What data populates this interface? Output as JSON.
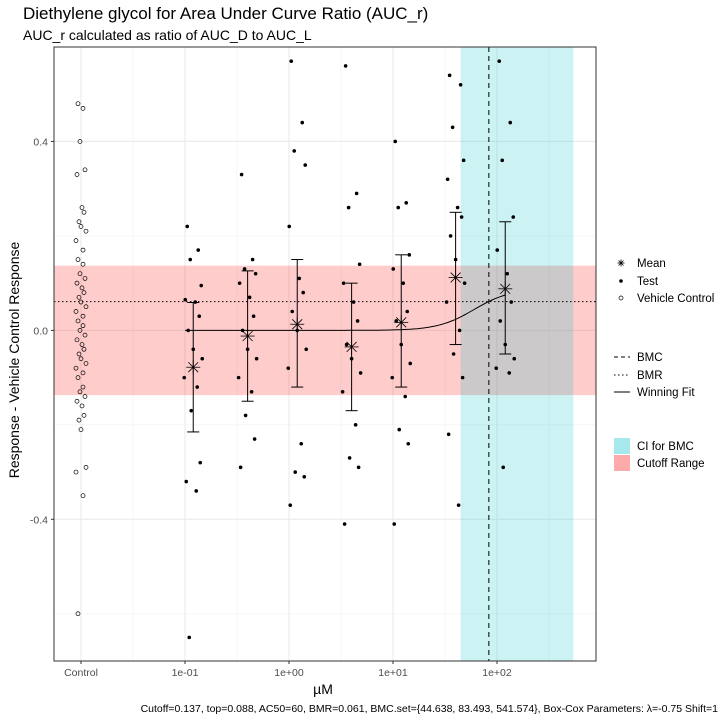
{
  "chart_data": {
    "type": "scatter",
    "title": "Diethylene glycol for Area Under Curve Ratio (AUC_r)",
    "subtitle": "AUC_r calculated as ratio of AUC_D to AUC_L",
    "xlabel": "µM",
    "ylabel": "Response - Vehicle Control Response",
    "x_scale": "log10",
    "x_ticks": [
      "Control",
      "1e-01",
      "1e+00",
      "1e+01",
      "1e+02"
    ],
    "y_ticks": [
      "0.4",
      "0.0",
      "-0.4"
    ],
    "ylim": [
      -0.7,
      0.6
    ],
    "grid": true,
    "legend_position": "right",
    "caption": "Cutoff=0.137, top=0.088, AC50=60, BMR=0.061, BMC.set={44.638, 83.493, 541.574}, Box-Cox Parameters: λ=-0.75 Shift=1",
    "legend": {
      "points": [
        {
          "label": "Mean",
          "glyph": "asterisk"
        },
        {
          "label": "Test",
          "glyph": "dot"
        },
        {
          "label": "Vehicle Control",
          "glyph": "circle"
        }
      ],
      "lines": [
        {
          "label": "BMC",
          "style": "dashed"
        },
        {
          "label": "BMR",
          "style": "dotted"
        },
        {
          "label": "Winning Fit",
          "style": "solid"
        }
      ],
      "fills": [
        {
          "label": "CI for BMC",
          "color": "#a6e9ec"
        },
        {
          "label": "Cutoff Range",
          "color": "#ffaaaa"
        }
      ]
    },
    "cutoff": 0.137,
    "bmr": 0.061,
    "bmc": 83.493,
    "bmc_ci": [
      44.638,
      541.574
    ],
    "fit": {
      "model": "hill",
      "top": 0.088,
      "ac50": 60,
      "n": 2.5
    },
    "means": [
      {
        "conc": 0.12,
        "mean": -0.078,
        "lo": -0.215,
        "hi": 0.059
      },
      {
        "conc": 0.4,
        "mean": -0.012,
        "lo": -0.15,
        "hi": 0.126
      },
      {
        "conc": 1.2,
        "mean": 0.013,
        "lo": -0.12,
        "hi": 0.15
      },
      {
        "conc": 4.0,
        "mean": -0.035,
        "lo": -0.17,
        "hi": 0.1
      },
      {
        "conc": 12.0,
        "mean": 0.017,
        "lo": -0.12,
        "hi": 0.16
      },
      {
        "conc": 40.0,
        "mean": 0.112,
        "lo": -0.03,
        "hi": 0.25
      },
      {
        "conc": 120.0,
        "mean": 0.088,
        "lo": -0.05,
        "hi": 0.23
      }
    ],
    "test_points": [
      {
        "conc": 0.12,
        "values": [
          0.22,
          0.17,
          0.15,
          0.095,
          0.065,
          0.06,
          0.03,
          0.0,
          -0.04,
          -0.06,
          -0.1,
          -0.12,
          -0.17,
          -0.28,
          -0.32,
          -0.34,
          -0.65
        ]
      },
      {
        "conc": 0.4,
        "values": [
          0.33,
          0.15,
          0.13,
          0.12,
          0.1,
          0.07,
          0.03,
          0.0,
          -0.04,
          -0.06,
          -0.1,
          -0.13,
          -0.18,
          -0.23,
          -0.29
        ]
      },
      {
        "conc": 1.2,
        "values": [
          0.57,
          0.44,
          0.38,
          0.35,
          0.22,
          0.11,
          0.08,
          0.04,
          0.0,
          -0.04,
          -0.08,
          -0.24,
          -0.3,
          -0.31,
          -0.37
        ]
      },
      {
        "conc": 4.0,
        "values": [
          0.56,
          0.29,
          0.26,
          0.14,
          0.1,
          0.06,
          0.02,
          -0.03,
          -0.06,
          -0.09,
          -0.13,
          -0.2,
          -0.27,
          -0.29,
          -0.41
        ]
      },
      {
        "conc": 12.0,
        "values": [
          0.4,
          0.27,
          0.26,
          0.16,
          0.13,
          0.1,
          0.04,
          0.02,
          -0.03,
          -0.07,
          -0.1,
          -0.14,
          -0.21,
          -0.24,
          -0.41
        ]
      },
      {
        "conc": 40.0,
        "values": [
          0.54,
          0.52,
          0.43,
          0.36,
          0.32,
          0.26,
          0.24,
          0.2,
          0.15,
          0.1,
          0.06,
          0.0,
          -0.05,
          -0.1,
          -0.22,
          -0.37
        ]
      },
      {
        "conc": 120.0,
        "values": [
          0.57,
          0.44,
          0.36,
          0.24,
          0.17,
          0.12,
          0.06,
          0.02,
          -0.03,
          -0.06,
          -0.08,
          -0.09,
          -0.29
        ]
      }
    ],
    "vehicle_control": [
      0.48,
      0.47,
      0.4,
      0.34,
      0.33,
      0.26,
      0.25,
      0.23,
      0.22,
      0.21,
      0.19,
      0.17,
      0.15,
      0.14,
      0.12,
      0.11,
      0.1,
      0.09,
      0.08,
      0.07,
      0.06,
      0.05,
      0.04,
      0.03,
      0.02,
      0.01,
      0.0,
      -0.01,
      -0.02,
      -0.03,
      -0.04,
      -0.05,
      -0.06,
      -0.07,
      -0.08,
      -0.09,
      -0.1,
      -0.12,
      -0.13,
      -0.14,
      -0.15,
      -0.16,
      -0.18,
      -0.19,
      -0.21,
      -0.29,
      -0.3,
      -0.35,
      -0.6
    ]
  }
}
